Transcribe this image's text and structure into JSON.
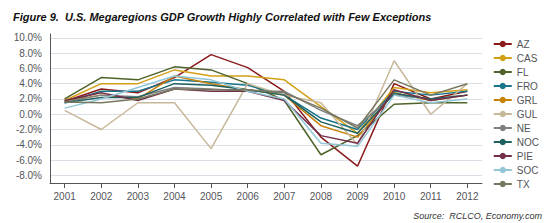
{
  "chart_data": {
    "type": "line",
    "title": "Figure 9.  U.S. Megaregions GDP Growth Highly Correlated with Few Exceptions",
    "annotations": [
      "Source:  RCLCO, Economy.com"
    ],
    "x": [
      2001,
      2002,
      2003,
      2004,
      2005,
      2006,
      2007,
      2008,
      2009,
      2010,
      2011,
      2012
    ],
    "series": [
      {
        "name": "AZ",
        "color": "#8B1A1A",
        "values": [
          0.017,
          0.033,
          0.028,
          0.048,
          0.078,
          0.061,
          0.03,
          -0.03,
          -0.068,
          0.04,
          0.02,
          0.03
        ]
      },
      {
        "name": "CAS",
        "color": "#D4A017",
        "values": [
          0.018,
          0.04,
          0.04,
          0.058,
          0.05,
          0.05,
          0.045,
          0.01,
          -0.025,
          0.035,
          0.028,
          0.032
        ]
      },
      {
        "name": "FL",
        "color": "#4F6228",
        "values": [
          0.02,
          0.048,
          0.045,
          0.062,
          0.058,
          0.04,
          0.018,
          -0.053,
          -0.028,
          0.013,
          0.015,
          0.015
        ]
      },
      {
        "name": "FRO",
        "color": "#17748A",
        "values": [
          0.015,
          0.03,
          0.03,
          0.045,
          0.042,
          0.038,
          0.025,
          -0.005,
          -0.02,
          0.03,
          0.025,
          0.03
        ]
      },
      {
        "name": "GRL",
        "color": "#C8820A",
        "values": [
          0.017,
          0.025,
          0.02,
          0.05,
          0.04,
          0.032,
          0.025,
          -0.015,
          -0.03,
          0.028,
          0.018,
          0.025
        ]
      },
      {
        "name": "GUL",
        "color": "#C8B89A",
        "values": [
          0.005,
          -0.02,
          0.015,
          0.015,
          -0.045,
          0.04,
          0.025,
          0.015,
          -0.04,
          0.07,
          0.0,
          0.04
        ]
      },
      {
        "name": "NE",
        "color": "#808080",
        "values": [
          0.016,
          0.025,
          0.023,
          0.035,
          0.033,
          0.03,
          0.03,
          0.005,
          -0.015,
          0.025,
          0.02,
          0.025
        ]
      },
      {
        "name": "NOC",
        "color": "#1F6060",
        "values": [
          0.015,
          0.022,
          0.022,
          0.04,
          0.038,
          0.032,
          0.025,
          -0.01,
          -0.025,
          0.027,
          0.02,
          0.025
        ]
      },
      {
        "name": "PIE",
        "color": "#722F4A",
        "values": [
          0.018,
          0.028,
          0.018,
          0.033,
          0.03,
          0.03,
          0.018,
          -0.028,
          -0.038,
          0.032,
          0.018,
          0.025
        ]
      },
      {
        "name": "SOC",
        "color": "#93C6D6",
        "values": [
          0.008,
          0.02,
          0.035,
          0.05,
          0.045,
          0.03,
          0.02,
          -0.038,
          -0.042,
          0.025,
          0.015,
          0.02
        ]
      },
      {
        "name": "TX",
        "color": "#787860",
        "values": [
          0.016,
          0.015,
          0.02,
          0.033,
          0.032,
          0.032,
          0.028,
          0.008,
          -0.018,
          0.045,
          0.025,
          0.04
        ]
      }
    ],
    "xlim": [
      2000.6,
      2012.4
    ],
    "xticks": [
      2001,
      2002,
      2003,
      2004,
      2005,
      2006,
      2007,
      2008,
      2009,
      2010,
      2011,
      2012
    ],
    "ylim": [
      -0.09,
      0.105
    ],
    "yticks": [
      {
        "value": -0.08,
        "label": "-8.0%"
      },
      {
        "value": -0.06,
        "label": "-6.0%"
      },
      {
        "value": -0.04,
        "label": "-4.0%"
      },
      {
        "value": -0.02,
        "label": "-2.0%"
      },
      {
        "value": 0.0,
        "label": "0.0%"
      },
      {
        "value": 0.02,
        "label": "2.0%"
      },
      {
        "value": 0.04,
        "label": "4.0%"
      },
      {
        "value": 0.06,
        "label": "6.0%"
      },
      {
        "value": 0.08,
        "label": "8.0%"
      },
      {
        "value": 0.1,
        "label": "10.0%"
      }
    ],
    "grid": true,
    "legend": "right"
  }
}
